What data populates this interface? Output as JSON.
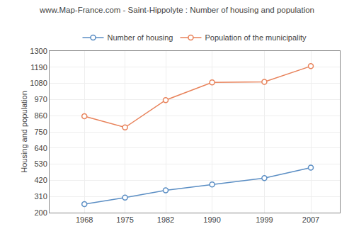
{
  "chart_data": {
    "type": "line",
    "title": "www.Map-France.com - Saint-Hippolyte : Number of housing and population",
    "ylabel": "Housing and population",
    "x": [
      1968,
      1975,
      1982,
      1990,
      1999,
      2007
    ],
    "series": [
      {
        "name": "Number of housing",
        "color": "#5b8ec4",
        "values": [
          258,
          302,
          352,
          392,
          435,
          506
        ]
      },
      {
        "name": "Population of the municipality",
        "color": "#e8825a",
        "values": [
          856,
          780,
          966,
          1086,
          1090,
          1197
        ]
      }
    ],
    "xlim": [
      1962,
      2012
    ],
    "xticks": [
      1968,
      1975,
      1982,
      1990,
      1999,
      2007
    ],
    "ylim": [
      200,
      1300
    ],
    "yticks": [
      200,
      310,
      420,
      530,
      640,
      750,
      860,
      970,
      1080,
      1190,
      1300
    ],
    "grid": true,
    "legend": "top",
    "marker": "circle"
  }
}
